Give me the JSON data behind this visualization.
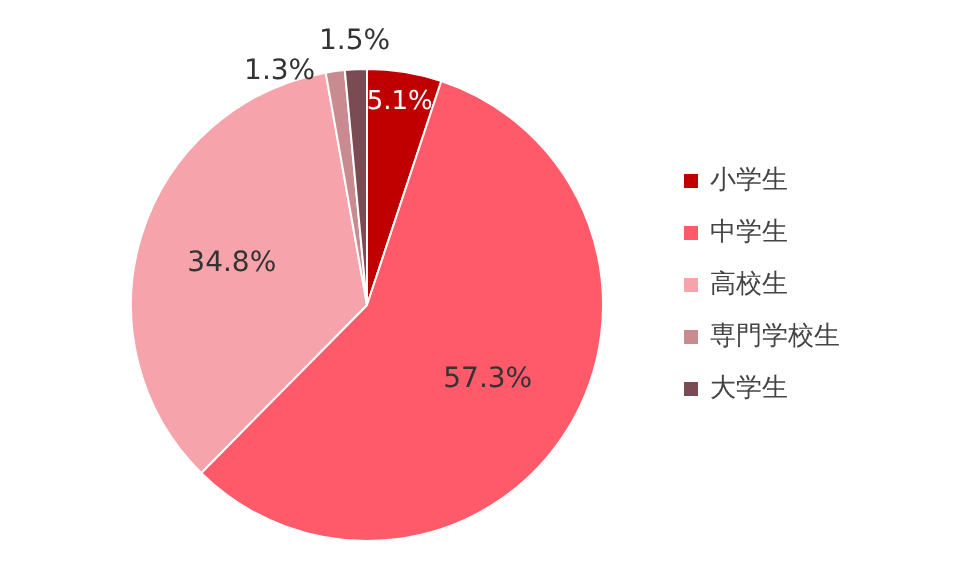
{
  "chart_data": {
    "type": "pie",
    "categories": [
      "小学生",
      "中学生",
      "高校生",
      "専門学校生",
      "大学生"
    ],
    "values": [
      5.1,
      57.3,
      34.8,
      1.3,
      1.5
    ],
    "value_labels": [
      "5.1%",
      "57.3%",
      "34.8%",
      "1.3%",
      "1.5%"
    ],
    "colors": [
      "#c00000",
      "#ff5a6a",
      "#f7a3ab",
      "#c98a90",
      "#7a4b52"
    ],
    "legend": "right"
  }
}
